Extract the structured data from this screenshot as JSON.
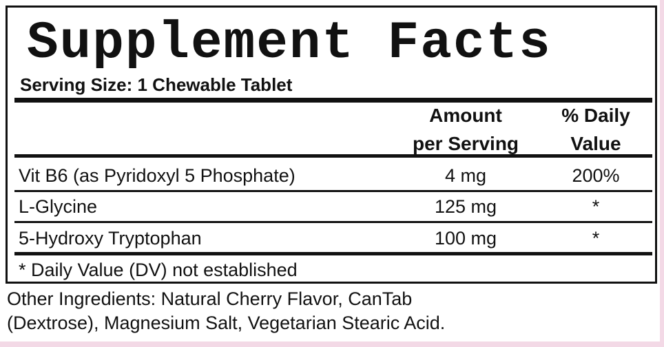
{
  "title": "Supplement Facts",
  "serving_size": "Serving Size:  1 Chewable Tablet",
  "table": {
    "header": [
      [
        "Amount",
        "per Serving"
      ],
      [
        "% Daily",
        "Value"
      ]
    ],
    "rows": [
      [
        "Vit B6 (as Pyridoxyl 5 Phosphate)",
        "4 mg",
        "200%"
      ],
      [
        "L-Glycine",
        "125 mg",
        "*"
      ],
      [
        "5-Hydroxy Tryptophan",
        "100 mg",
        "*"
      ]
    ]
  },
  "footnote": "* Daily Value (DV) not established",
  "other_ingredients": [
    "Other Ingredients: Natural Cherry Flavor, CanTab",
    "(Dextrose), Magnesium Salt, Vegetarian Stearic Acid."
  ]
}
